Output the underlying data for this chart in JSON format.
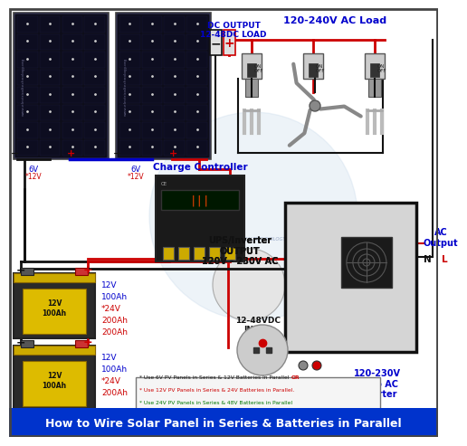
{
  "title": "How to Wire Solar Panel in Series & Batteries in Parallel",
  "title_bg": "#0033cc",
  "title_color": "#ffffff",
  "title_fontsize": 9.0,
  "bg_color": "#ffffff",
  "watermark": "WWW.ELECTRICALTECHNOLOGY.ORG",
  "dc_output_label": "DC OUTPUT\n12-48DC LOAD",
  "ac_load_label": "120-240V AC Load",
  "charge_controller_label": "Charge Controller",
  "ups_label": "UPS/Inverter\nOUTPUT\n120V - 230V AC",
  "inverter_label": "120-230V\nDC to AC\nInverter",
  "input_label": "12-48VDC\nINPUT",
  "ac_output_label": "AC\nOutput",
  "wire_red": "#cc0000",
  "wire_black": "#111111",
  "wire_blue": "#0000cc",
  "label_blue": "#0000cc",
  "label_red": "#cc0000",
  "label_green": "#007700",
  "note1": "* Use 6V PV Panels in Series & 12V Batteries in Parallel ",
  "note1b": "OR",
  "note2": "* Use 12V PV Panels in Series & 24V Batteries in Parallel.",
  "note3": "* Use 24V PV Panels in Series & 48V Batteries in Parallel"
}
